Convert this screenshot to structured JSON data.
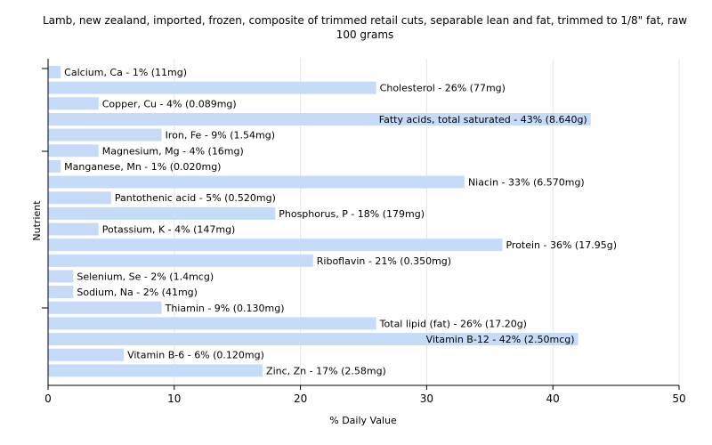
{
  "chart_data": {
    "type": "bar",
    "orientation": "horizontal",
    "title": "Lamb, new zealand, imported, frozen, composite of trimmed retail cuts, separable lean and fat, trimmed to 1/8\" fat, raw 100 grams",
    "xlabel": "% Daily Value",
    "ylabel": "Nutrient",
    "xlim": [
      0,
      50
    ],
    "xticks": [
      0,
      10,
      20,
      30,
      40,
      50
    ],
    "grid": true,
    "bar_color": "#c6dbf7",
    "categories": [
      "Calcium, Ca",
      "Cholesterol",
      "Copper, Cu",
      "Fatty acids, total saturated",
      "Iron, Fe",
      "Magnesium, Mg",
      "Manganese, Mn",
      "Niacin",
      "Pantothenic acid",
      "Phosphorus, P",
      "Potassium, K",
      "Protein",
      "Riboflavin",
      "Selenium, Se",
      "Sodium, Na",
      "Thiamin",
      "Total lipid (fat)",
      "Vitamin B-12",
      "Vitamin B-6",
      "Zinc, Zn"
    ],
    "values": [
      1,
      26,
      4,
      43,
      9,
      4,
      1,
      33,
      5,
      18,
      4,
      36,
      21,
      2,
      2,
      9,
      26,
      42,
      6,
      17
    ],
    "labels": [
      "Calcium, Ca - 1% (11mg)",
      "Cholesterol - 26% (77mg)",
      "Copper, Cu - 4% (0.089mg)",
      "Fatty acids, total saturated - 43% (8.640g)",
      "Iron, Fe - 9% (1.54mg)",
      "Magnesium, Mg - 4% (16mg)",
      "Manganese, Mn - 1% (0.020mg)",
      "Niacin - 33% (6.570mg)",
      "Pantothenic acid - 5% (0.520mg)",
      "Phosphorus, P - 18% (179mg)",
      "Potassium, K - 4% (147mg)",
      "Protein - 36% (17.95g)",
      "Riboflavin - 21% (0.350mg)",
      "Selenium, Se - 2% (1.4mcg)",
      "Sodium, Na - 2% (41mg)",
      "Thiamin - 9% (0.130mg)",
      "Total lipid (fat) - 26% (17.20g)",
      "Vitamin B-12 - 42% (2.50mcg)",
      "Vitamin B-6 - 6% (0.120mg)",
      "Zinc, Zn - 17% (2.58mg)"
    ]
  }
}
